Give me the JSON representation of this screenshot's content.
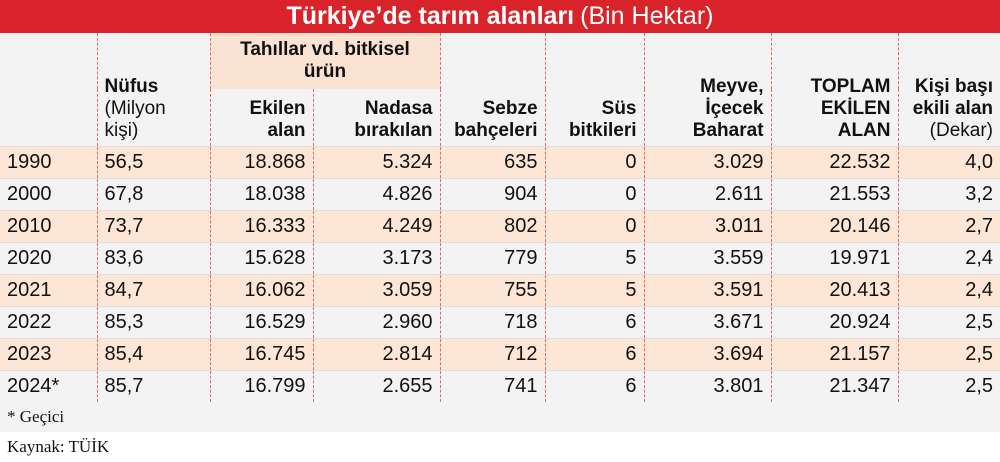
{
  "title": {
    "bold": "Türkiye’de tarım alanları",
    "light": "(Bin Hektar)"
  },
  "header": {
    "group": "Tahıllar vd. bitkisel ürün",
    "nufus": "Nüfus",
    "nufus_unit": "(Milyon kişi)",
    "ekilen": "Ekilen alan",
    "nadasa": "Nadasa bırakılan",
    "sebze": "Sebze bahçeleri",
    "sus": "Süs bitkileri",
    "meyve": "Meyve, İçecek Baharat",
    "toplam": "TOPLAM EKİLEN ALAN",
    "kisi": "Kişi başı ekili alan",
    "kisi_unit": "(Dekar)"
  },
  "chart_data": {
    "type": "table",
    "title": "Türkiye’de tarım alanları (Bin Hektar)",
    "columns": [
      "",
      "Nüfus (Milyon kişi)",
      "Ekilen alan",
      "Nadasa bırakılan",
      "Sebze bahçeleri",
      "Süs bitkileri",
      "Meyve, İçecek Baharat",
      "TOPLAM EKİLEN ALAN",
      "Kişi başı ekili alan (Dekar)"
    ],
    "rows": [
      [
        "1990",
        "56,5",
        "18.868",
        "5.324",
        "635",
        "0",
        "3.029",
        "22.532",
        "4,0"
      ],
      [
        "2000",
        "67,8",
        "18.038",
        "4.826",
        "904",
        "0",
        "2.611",
        "21.553",
        "3,2"
      ],
      [
        "2010",
        "73,7",
        "16.333",
        "4.249",
        "802",
        "0",
        "3.011",
        "20.146",
        "2,7"
      ],
      [
        "2020",
        "83,6",
        "15.628",
        "3.173",
        "779",
        "5",
        "3.559",
        "19.971",
        "2,4"
      ],
      [
        "2021",
        "84,7",
        "16.062",
        "3.059",
        "755",
        "5",
        "3.591",
        "20.413",
        "2,4"
      ],
      [
        "2022",
        "85,3",
        "16.529",
        "2.960",
        "718",
        "6",
        "3.671",
        "20.924",
        "2,5"
      ],
      [
        "2023",
        "85,4",
        "16.745",
        "2.814",
        "712",
        "6",
        "3.694",
        "21.157",
        "2,5"
      ],
      [
        "2024*",
        "85,7",
        "16.799",
        "2.655",
        "741",
        "6",
        "3.801",
        "21.347",
        "2,5"
      ]
    ]
  },
  "footer": {
    "note": "* Geçici",
    "source": "Kaynak: TÜİK"
  },
  "colors": {
    "banner": "#d8232a",
    "row_peach": "#fde6d6",
    "row_grey": "#f3f3f3",
    "divider": "#e06a6a"
  }
}
